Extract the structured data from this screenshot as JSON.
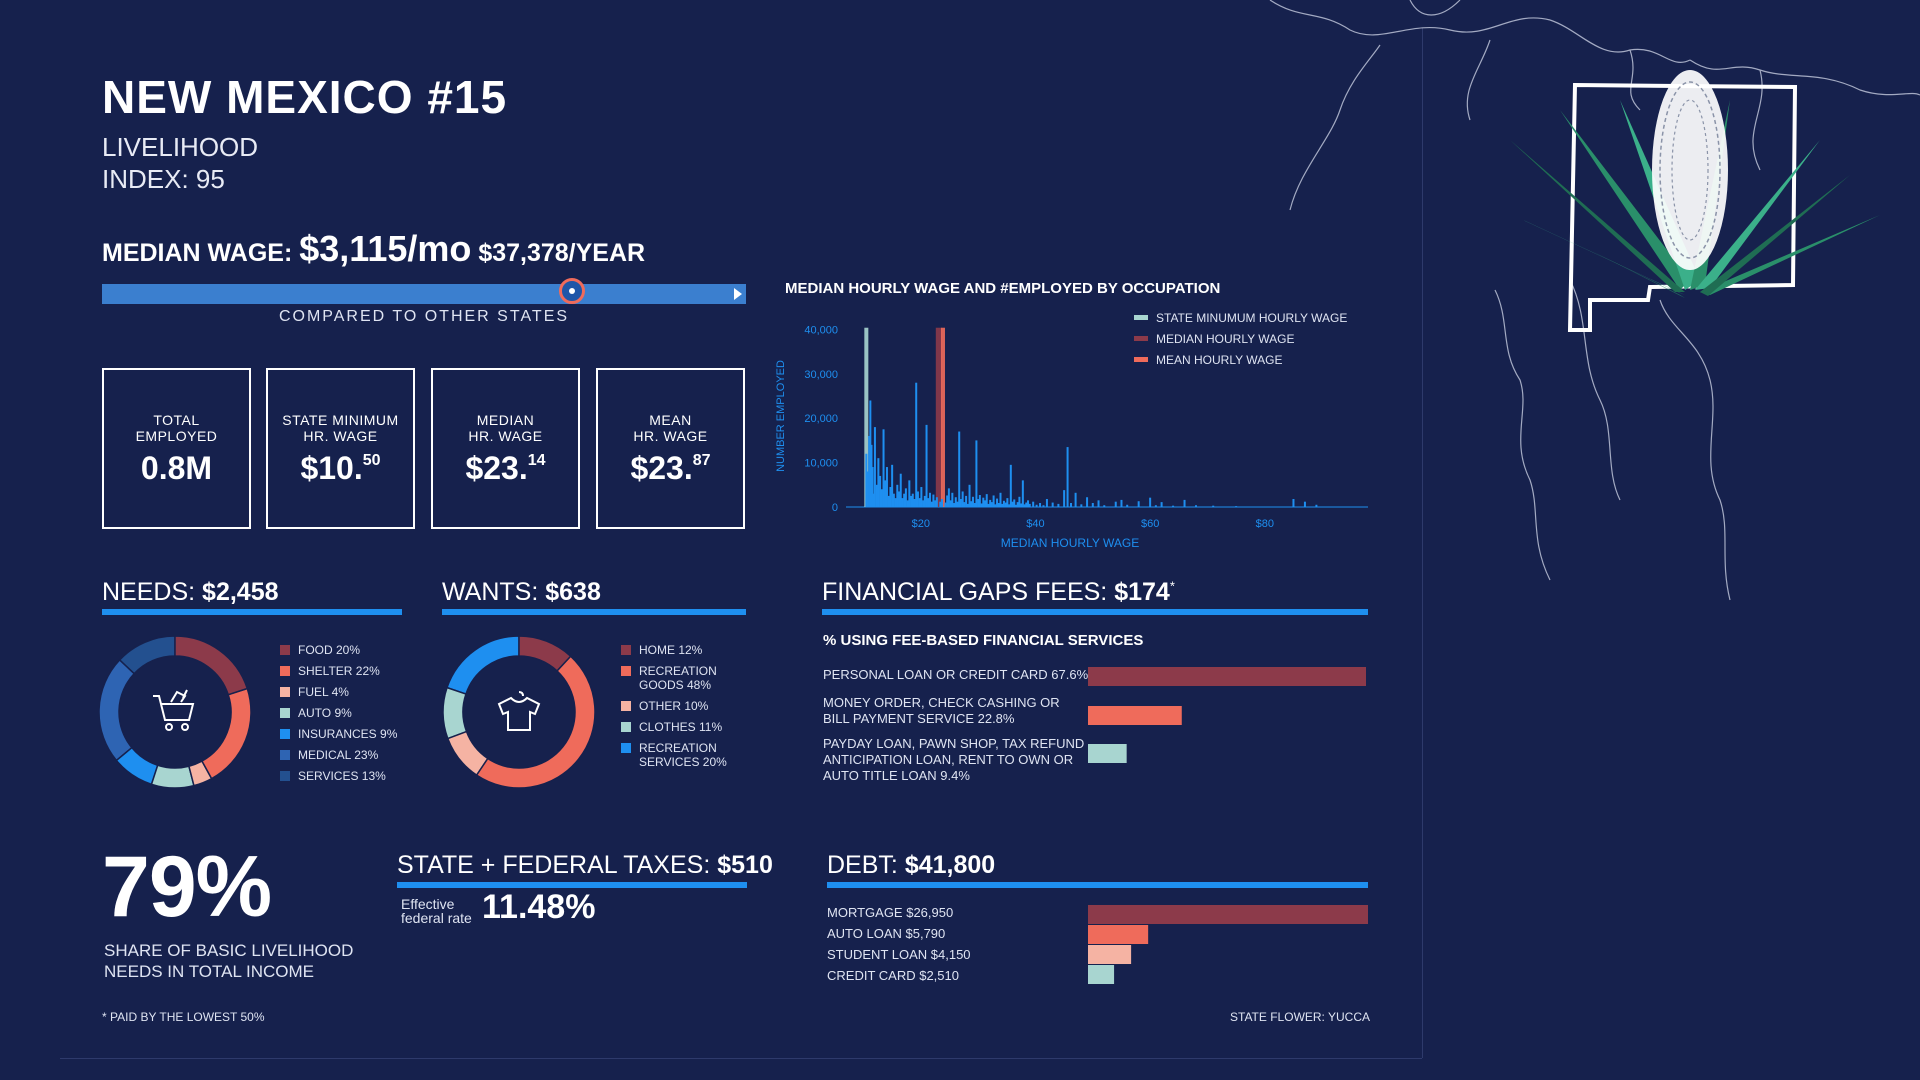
{
  "header": {
    "title": "NEW MEXICO #15",
    "line1": "LIVELIHOOD",
    "line2": "INDEX: 95"
  },
  "median_wage": {
    "label": "MEDIAN WAGE:",
    "monthly": "$3,115/mo",
    "yearly": "$37,378/YEAR",
    "comparison_caption": "COMPARED TO OTHER STATES",
    "comparison_position_fraction": 0.73
  },
  "stats": [
    {
      "label_line1": "TOTAL",
      "label_line2": "EMPLOYED",
      "value": "0.8M",
      "sup": ""
    },
    {
      "label_line1": "STATE MINIMUM",
      "label_line2": "HR. WAGE",
      "value": "$10.",
      "sup": "50"
    },
    {
      "label_line1": "MEDIAN",
      "label_line2": "HR. WAGE",
      "value": "$23.",
      "sup": "14"
    },
    {
      "label_line1": "MEAN",
      "label_line2": "HR. WAGE",
      "value": "$23.",
      "sup": "87"
    }
  ],
  "chart_data": [
    {
      "type": "bar",
      "title": "MEDIAN HOURLY WAGE AND #EMPLOYED BY OCCUPATION",
      "xlabel": "MEDIAN HOURLY WAGE",
      "ylabel": "NUMBER EMPLOYED",
      "x_ticks": [
        "$20",
        "$40",
        "$60",
        "$80"
      ],
      "x_tick_values": [
        20,
        40,
        60,
        80
      ],
      "y_ticks": [
        "0",
        "10,000",
        "20,000",
        "30,000",
        "40,000"
      ],
      "y_tick_values": [
        0,
        10000,
        20000,
        30000,
        40000
      ],
      "xlim": [
        8,
        98
      ],
      "ylim": [
        0,
        41000
      ],
      "legend": [
        {
          "label": "STATE MINUMUM HOURLY WAGE",
          "color": "#a8d5d0"
        },
        {
          "label": "MEDIAN HOURLY WAGE",
          "color": "#8c3a4a"
        },
        {
          "label": "MEAN HOURLY WAGE",
          "color": "#ef6b5b"
        }
      ],
      "legend_position": "top-right",
      "reference_lines": [
        {
          "name": "STATE MINUMUM HOURLY WAGE",
          "x": 10.5,
          "color": "#a8d5d0"
        },
        {
          "name": "MEDIAN HOURLY WAGE",
          "x": 23.14,
          "color": "#8c3a4a"
        },
        {
          "name": "MEAN HOURLY WAGE",
          "x": 23.87,
          "color": "#ef6b5b"
        }
      ],
      "series": [
        {
          "color": "#1e8ff0",
          "points": [
            [
              10.5,
              12000
            ],
            [
              10.8,
              8000
            ],
            [
              11.0,
              16000
            ],
            [
              11.2,
              24000
            ],
            [
              11.4,
              14000
            ],
            [
              11.6,
              9000
            ],
            [
              11.8,
              3000
            ],
            [
              12.0,
              18000
            ],
            [
              12.3,
              5000
            ],
            [
              12.6,
              11000
            ],
            [
              12.9,
              7000
            ],
            [
              13.2,
              4000
            ],
            [
              13.5,
              17500
            ],
            [
              13.8,
              6000
            ],
            [
              14.1,
              9000
            ],
            [
              14.4,
              2500
            ],
            [
              14.7,
              4500
            ],
            [
              15.0,
              9500
            ],
            [
              15.3,
              3000
            ],
            [
              15.6,
              2000
            ],
            [
              15.9,
              5000
            ],
            [
              16.2,
              3500
            ],
            [
              16.5,
              7500
            ],
            [
              16.8,
              2000
            ],
            [
              17.1,
              3000
            ],
            [
              17.4,
              4200
            ],
            [
              17.7,
              1500
            ],
            [
              18.0,
              6000
            ],
            [
              18.3,
              2500
            ],
            [
              18.6,
              3000
            ],
            [
              18.9,
              1800
            ],
            [
              19.2,
              28000
            ],
            [
              19.5,
              3500
            ],
            [
              19.8,
              2000
            ],
            [
              20.1,
              4500
            ],
            [
              20.4,
              1500
            ],
            [
              20.7,
              2500
            ],
            [
              21.0,
              18500
            ],
            [
              21.3,
              2000
            ],
            [
              21.6,
              3200
            ],
            [
              21.9,
              1200
            ],
            [
              22.2,
              2800
            ],
            [
              22.5,
              1500
            ],
            [
              22.8,
              2200
            ],
            [
              23.4,
              1200
            ],
            [
              23.7,
              1800
            ],
            [
              24.3,
              1000
            ],
            [
              24.6,
              2600
            ],
            [
              24.9,
              4200
            ],
            [
              25.2,
              1500
            ],
            [
              25.5,
              3200
            ],
            [
              25.8,
              900
            ],
            [
              26.1,
              2200
            ],
            [
              26.4,
              1200
            ],
            [
              26.7,
              17000
            ],
            [
              27.0,
              1800
            ],
            [
              27.3,
              3500
            ],
            [
              27.6,
              1100
            ],
            [
              27.9,
              2500
            ],
            [
              28.2,
              700
            ],
            [
              28.5,
              5000
            ],
            [
              28.8,
              1300
            ],
            [
              29.1,
              2300
            ],
            [
              29.4,
              900
            ],
            [
              29.7,
              15000
            ],
            [
              30.0,
              1800
            ],
            [
              30.3,
              2700
            ],
            [
              30.6,
              800
            ],
            [
              30.9,
              2100
            ],
            [
              31.2,
              1500
            ],
            [
              31.5,
              2900
            ],
            [
              31.8,
              700
            ],
            [
              32.1,
              1600
            ],
            [
              32.4,
              1100
            ],
            [
              32.7,
              2600
            ],
            [
              33.0,
              600
            ],
            [
              33.3,
              1900
            ],
            [
              33.6,
              900
            ],
            [
              33.9,
              3200
            ],
            [
              34.2,
              700
            ],
            [
              34.5,
              1400
            ],
            [
              34.8,
              1000
            ],
            [
              35.1,
              2000
            ],
            [
              35.4,
              600
            ],
            [
              35.7,
              9500
            ],
            [
              36.0,
              1200
            ],
            [
              36.3,
              1700
            ],
            [
              36.6,
              500
            ],
            [
              36.9,
              1100
            ],
            [
              37.2,
              2300
            ],
            [
              37.5,
              800
            ],
            [
              37.8,
              6000
            ],
            [
              38.1,
              600
            ],
            [
              38.4,
              1000
            ],
            [
              38.7,
              1500
            ],
            [
              39.0,
              700
            ],
            [
              39.6,
              1200
            ],
            [
              40.2,
              500
            ],
            [
              40.8,
              900
            ],
            [
              41.4,
              400
            ],
            [
              42.0,
              1800
            ],
            [
              43.0,
              1000
            ],
            [
              44.0,
              700
            ],
            [
              45.0,
              3800
            ],
            [
              45.6,
              13500
            ],
            [
              46.2,
              900
            ],
            [
              47.0,
              3200
            ],
            [
              48.0,
              600
            ],
            [
              49.0,
              2200
            ],
            [
              50.0,
              900
            ],
            [
              51.0,
              1500
            ],
            [
              52.0,
              400
            ],
            [
              54.0,
              1200
            ],
            [
              55.0,
              1600
            ],
            [
              56.0,
              500
            ],
            [
              58.0,
              1300
            ],
            [
              60.0,
              2100
            ],
            [
              61.0,
              400
            ],
            [
              62.0,
              1100
            ],
            [
              64.0,
              300
            ],
            [
              66.0,
              1600
            ],
            [
              68.0,
              400
            ],
            [
              71.0,
              300
            ],
            [
              75.0,
              200
            ],
            [
              85.0,
              1800
            ],
            [
              87.0,
              1200
            ],
            [
              89.0,
              500
            ]
          ]
        }
      ]
    },
    {
      "type": "pie",
      "title": "NEEDS: $2,458",
      "categories": [
        "FOOD 20%",
        "SHELTER 22%",
        "FUEL 4%",
        "AUTO 9%",
        "INSURANCES 9%",
        "MEDICAL 23%",
        "SERVICES 13%"
      ],
      "values": [
        20,
        22,
        4,
        9,
        9,
        23,
        13
      ],
      "colors": [
        "#8c3a4a",
        "#ef6b5b",
        "#f5b3a3",
        "#a8d5d0",
        "#1e8ff0",
        "#2e64b3",
        "#23508f"
      ]
    },
    {
      "type": "pie",
      "title": "WANTS: $638",
      "categories": [
        "HOME 12%",
        "RECREATION GOODS 48%",
        "OTHER 10%",
        "CLOTHES 11%",
        "RECREATION SERVICES 20%"
      ],
      "values": [
        12,
        48,
        10,
        11,
        20
      ],
      "colors": [
        "#8c3a4a",
        "#ef6b5b",
        "#f5b3a3",
        "#a8d5d0",
        "#1e8ff0"
      ]
    },
    {
      "type": "bar",
      "title": "% USING FEE-BASED FINANCIAL SERVICES",
      "categories": [
        "PERSONAL LOAN OR CREDIT CARD 67.6%",
        "MONEY ORDER, CHECK CASHING OR BILL PAYMENT SERVICE 22.8%",
        "PAYDAY LOAN, PAWN SHOP, TAX REFUND ANTICIPATION LOAN, RENT TO OWN OR AUTO TITLE LOAN 9.4%"
      ],
      "values": [
        67.6,
        22.8,
        9.4
      ],
      "colors": [
        "#8c3a4a",
        "#ef6b5b",
        "#a8d5d0"
      ],
      "xlim": [
        0,
        67.6
      ]
    },
    {
      "type": "bar",
      "title": "DEBT: $41,800",
      "categories": [
        "MORTGAGE $26,950",
        "AUTO LOAN $5,790",
        "STUDENT LOAN $4,150",
        "CREDIT CARD $2,510"
      ],
      "values": [
        26950,
        5790,
        4150,
        2510
      ],
      "colors": [
        "#8c3a4a",
        "#ef6b5b",
        "#f5b3a3",
        "#a8d5d0"
      ],
      "xlim": [
        0,
        26950
      ]
    }
  ],
  "needs": {
    "label": "NEEDS:",
    "amount": "$2,458"
  },
  "wants": {
    "label": "WANTS:",
    "amount": "$638"
  },
  "needs_legend": [
    {
      "text": "FOOD 20%",
      "color": "#8c3a4a"
    },
    {
      "text": "SHELTER 22%",
      "color": "#ef6b5b"
    },
    {
      "text": "FUEL 4%",
      "color": "#f5b3a3"
    },
    {
      "text": "AUTO 9%",
      "color": "#a8d5d0"
    },
    {
      "text": "INSURANCES 9%",
      "color": "#1e8ff0"
    },
    {
      "text": "MEDICAL 23%",
      "color": "#2e64b3"
    },
    {
      "text": "SERVICES 13%",
      "color": "#23508f"
    }
  ],
  "wants_legend": [
    {
      "l1": "HOME 12%",
      "l2": "",
      "color": "#8c3a4a"
    },
    {
      "l1": "RECREATION",
      "l2": "GOODS 48%",
      "color": "#ef6b5b"
    },
    {
      "l1": "OTHER 10%",
      "l2": "",
      "color": "#f5b3a3"
    },
    {
      "l1": "CLOTHES 11%",
      "l2": "",
      "color": "#a8d5d0"
    },
    {
      "l1": "RECREATION",
      "l2": "SERVICES 20%",
      "color": "#1e8ff0"
    }
  ],
  "fees": {
    "label": "FINANCIAL GAPS FEES:",
    "amount": "$174",
    "star": "*",
    "subtitle": "% USING FEE-BASED FINANCIAL SERVICES",
    "rows": [
      {
        "l1": "PERSONAL LOAN OR CREDIT CARD 67.6%",
        "l2": "",
        "l3": ""
      },
      {
        "l1": "MONEY ORDER, CHECK CASHING OR",
        "l2": "BILL PAYMENT SERVICE 22.8%",
        "l3": ""
      },
      {
        "l1": "PAYDAY LOAN, PAWN SHOP, TAX REFUND",
        "l2": "ANTICIPATION LOAN, RENT TO OWN OR",
        "l3": "AUTO TITLE LOAN 9.4%"
      }
    ]
  },
  "share": {
    "pct": "79%",
    "l1": "SHARE OF BASIC LIVELIHOOD",
    "l2": "NEEDS IN TOTAL INCOME"
  },
  "taxes": {
    "label": "STATE + FEDERAL TAXES:",
    "amount": "$510",
    "rate_l1": "Effective",
    "rate_l2": "federal rate",
    "rate": "11.48%"
  },
  "debt": {
    "label": "DEBT:",
    "amount": "$41,800",
    "rows": [
      "MORTGAGE $26,950",
      "AUTO LOAN $5,790",
      "STUDENT LOAN $4,150",
      "CREDIT CARD $2,510"
    ]
  },
  "footer": {
    "note": "* PAID BY THE LOWEST 50%",
    "flower": "STATE FLOWER: YUCCA"
  },
  "colors": {
    "background": "#16214d",
    "accent": "#1e8ff0",
    "marker": "#ef6b5b"
  }
}
